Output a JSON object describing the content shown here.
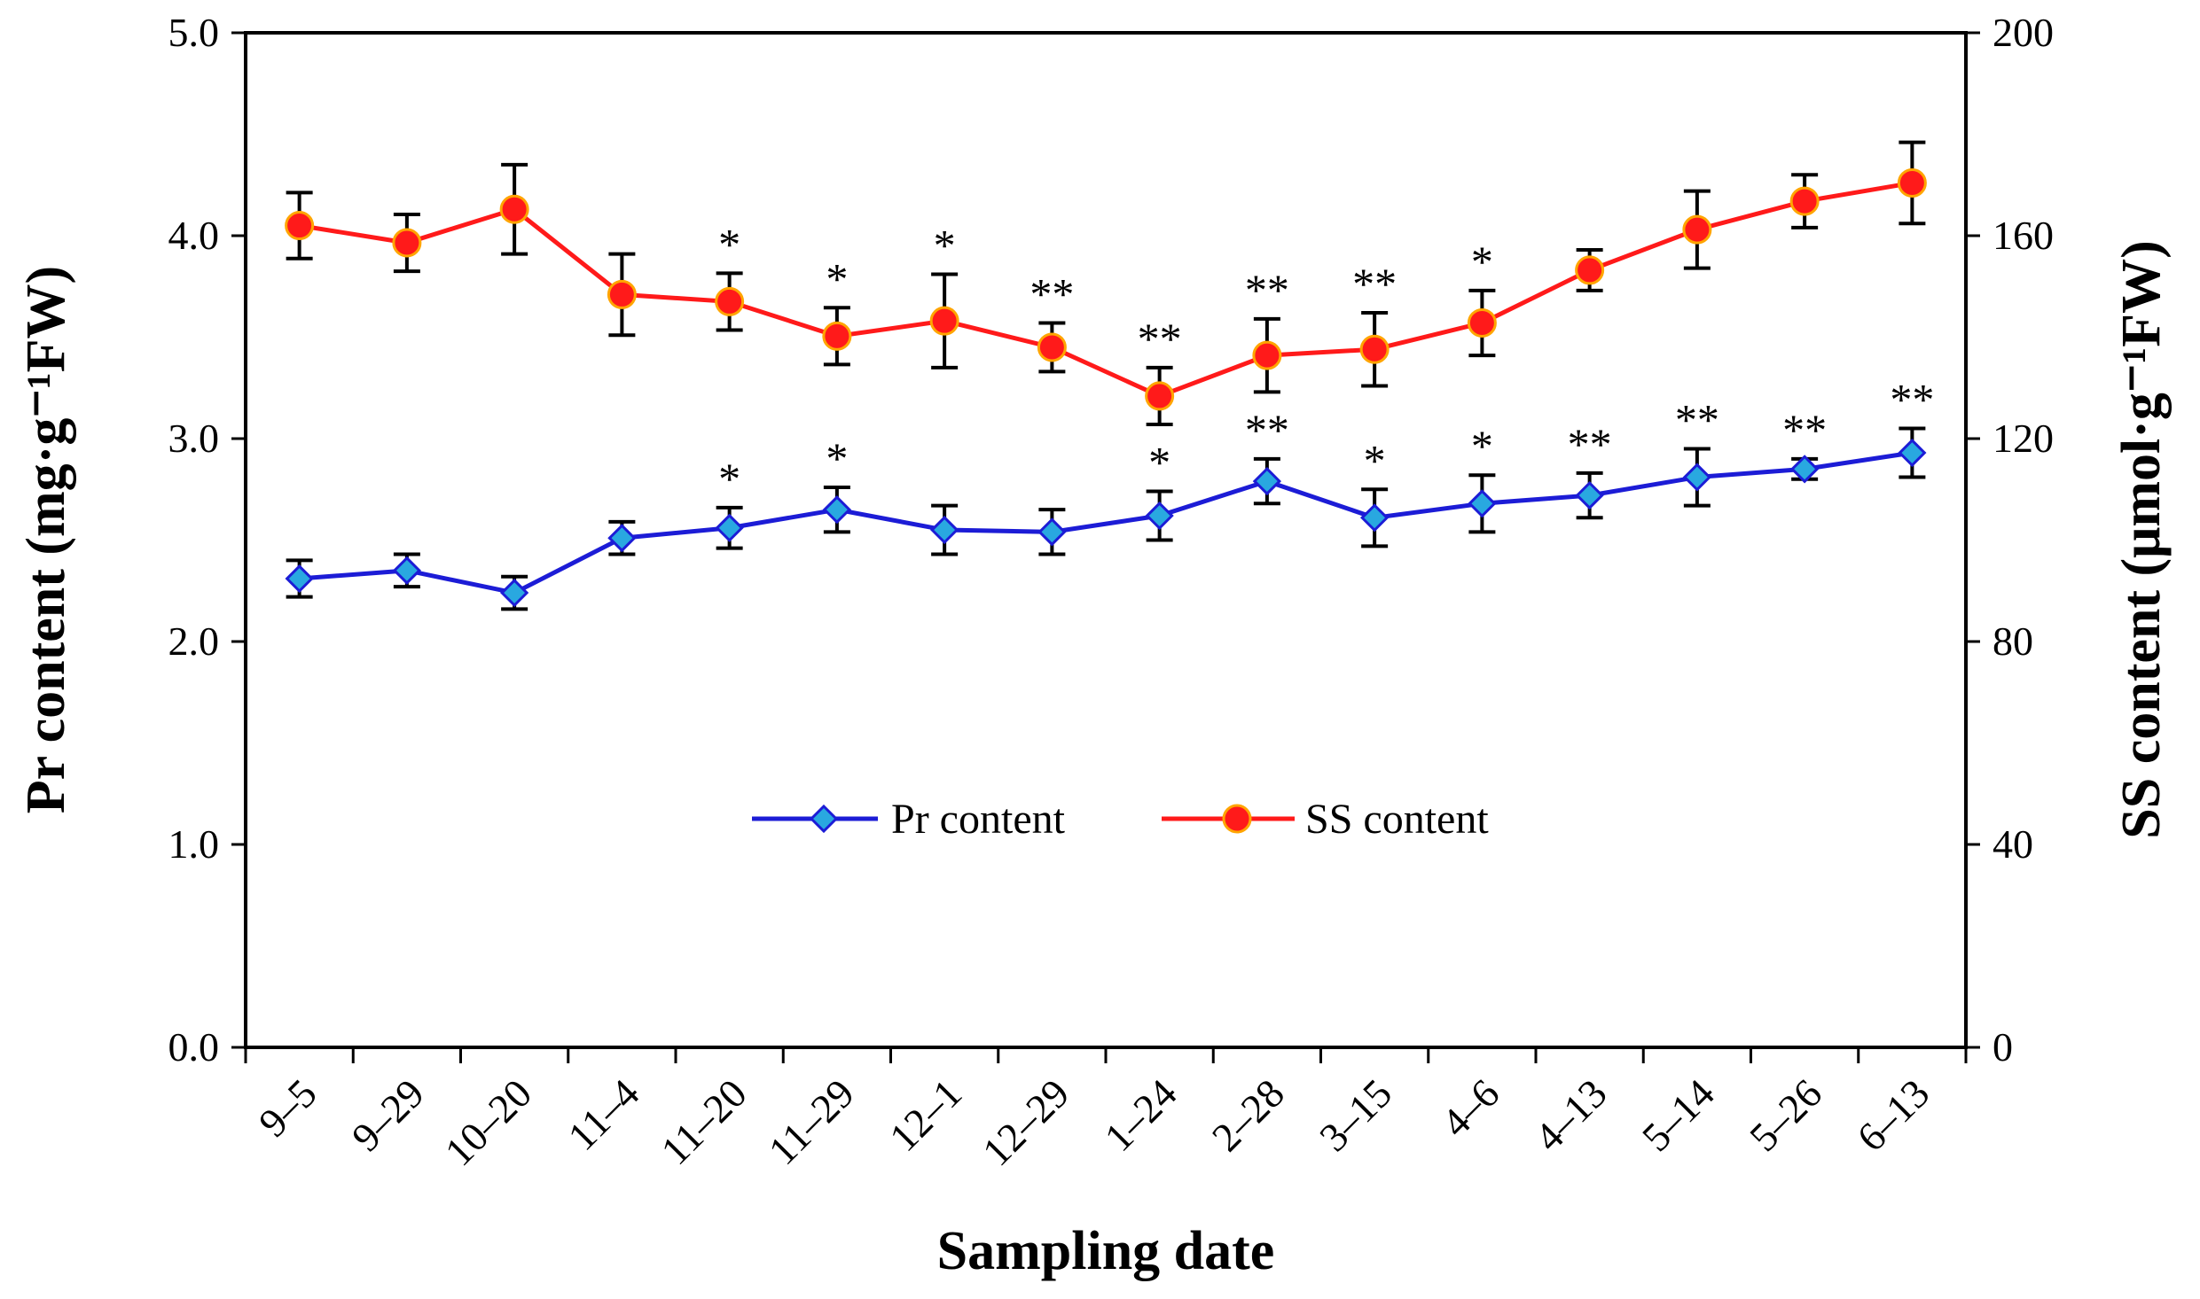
{
  "chart_data": {
    "type": "line",
    "title": "",
    "xlabel": "Sampling date",
    "ylabel_left": "Pr content (mg·g⁻¹FW)",
    "ylabel_right": "SS content (μmol·g⁻¹FW)",
    "categories": [
      "9–5",
      "9–29",
      "10–20",
      "11–4",
      "11–20",
      "11–29",
      "12–1",
      "12–29",
      "1–24",
      "2–28",
      "3–15",
      "4–6",
      "4–13",
      "5–14",
      "5–26",
      "6–13"
    ],
    "ylim_left": [
      0,
      5
    ],
    "ylim_right": [
      0,
      200
    ],
    "left_ticks": [
      "0.0",
      "1.0",
      "2.0",
      "3.0",
      "4.0",
      "5.0"
    ],
    "right_ticks": [
      "0",
      "40",
      "80",
      "120",
      "160",
      "200"
    ],
    "legend_position": "center",
    "grid": false,
    "series": [
      {
        "name": "Pr content",
        "axis": "left",
        "color": "#1c1cd6",
        "marker": "diamond",
        "marker_color": "#29a8e0",
        "values": [
          2.31,
          2.35,
          2.24,
          2.51,
          2.56,
          2.65,
          2.55,
          2.54,
          2.62,
          2.79,
          2.61,
          2.68,
          2.72,
          2.81,
          2.85,
          2.93
        ],
        "errors": [
          0.09,
          0.08,
          0.08,
          0.08,
          0.1,
          0.11,
          0.12,
          0.11,
          0.12,
          0.11,
          0.14,
          0.14,
          0.11,
          0.14,
          0.05,
          0.12
        ],
        "significance": [
          "",
          "",
          "",
          "",
          "*",
          "*",
          "",
          "",
          "*",
          "**",
          "*",
          "*",
          "**",
          "**",
          "**",
          "**"
        ]
      },
      {
        "name": "SS content",
        "axis": "right",
        "color": "#ff1a1a",
        "marker": "circle",
        "marker_color": "#ff1a1a",
        "marker_edge": "#ffa500",
        "values": [
          162.0,
          158.6,
          165.2,
          148.4,
          147.0,
          140.2,
          143.2,
          138.0,
          128.4,
          136.4,
          137.6,
          142.8,
          153.2,
          161.2,
          166.8,
          170.4
        ],
        "errors": [
          6.5,
          5.6,
          8.8,
          8.0,
          5.6,
          5.6,
          9.2,
          4.8,
          5.6,
          7.2,
          7.2,
          6.4,
          4.0,
          7.6,
          5.2,
          8.0
        ],
        "significance": [
          "",
          "",
          "",
          "",
          "*",
          "*",
          "*",
          "**",
          "**",
          "**",
          "**",
          "*",
          "",
          "",
          "",
          ""
        ]
      }
    ]
  }
}
